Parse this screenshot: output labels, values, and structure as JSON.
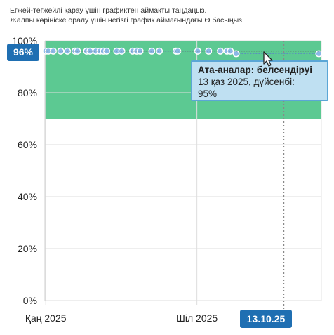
{
  "hints": {
    "line1": "Егжей-тегжейлі қарау үшін графиктен аймақты таңдаңыз.",
    "line2": "Жалпы көрініске оралу үшін негізгі график аймағындағы Ө басыңыз."
  },
  "chart_data": {
    "type": "scatter",
    "y_ticks": [
      "0%",
      "20%",
      "40%",
      "60%",
      "80%",
      "100%"
    ],
    "ylim": [
      0,
      100
    ],
    "x_ticks": [
      "Қаң 2025",
      "Шіл 2025"
    ],
    "xlim": [
      "2024-12-31",
      "2025-11-27"
    ],
    "target_band": {
      "from": 70,
      "to": 100,
      "color": "#3fbf7f"
    },
    "points": [
      {
        "x": "2025-01-01",
        "y": 96
      },
      {
        "x": "2025-01-04",
        "y": 96
      },
      {
        "x": "2025-01-10",
        "y": 96
      },
      {
        "x": "2025-01-19",
        "y": 96
      },
      {
        "x": "2025-01-27",
        "y": 96
      },
      {
        "x": "2025-02-05",
        "y": 96
      },
      {
        "x": "2025-02-08",
        "y": 96
      },
      {
        "x": "2025-02-19",
        "y": 96
      },
      {
        "x": "2025-02-23",
        "y": 96
      },
      {
        "x": "2025-03-02",
        "y": 96
      },
      {
        "x": "2025-03-07",
        "y": 96
      },
      {
        "x": "2025-03-11",
        "y": 96
      },
      {
        "x": "2025-03-15",
        "y": 96
      },
      {
        "x": "2025-03-27",
        "y": 96
      },
      {
        "x": "2025-04-02",
        "y": 96
      },
      {
        "x": "2025-04-15",
        "y": 96
      },
      {
        "x": "2025-04-20",
        "y": 96
      },
      {
        "x": "2025-04-24",
        "y": 96
      },
      {
        "x": "2025-05-08",
        "y": 96
      },
      {
        "x": "2025-05-17",
        "y": 96
      },
      {
        "x": "2025-06-06",
        "y": 96
      },
      {
        "x": "2025-06-08",
        "y": 96
      },
      {
        "x": "2025-07-02",
        "y": 96
      },
      {
        "x": "2025-07-15",
        "y": 96
      },
      {
        "x": "2025-07-29",
        "y": 96
      },
      {
        "x": "2025-08-06",
        "y": 96
      },
      {
        "x": "2025-08-10",
        "y": 96
      },
      {
        "x": "2025-08-17",
        "y": 95
      },
      {
        "x": "2025-11-24",
        "y": 95
      }
    ],
    "point_color": "#8ab8e6",
    "line_color": "#5a8fbf",
    "crosshair": {
      "x": "2025-10-13",
      "y": 96
    },
    "y_badge": "96%",
    "x_badge": "13.10.25",
    "tooltip": {
      "title": "Ата-аналар: белсендіруі",
      "line1": "13 қаз 2025, дүйсенбі:",
      "line2": "95%"
    }
  }
}
